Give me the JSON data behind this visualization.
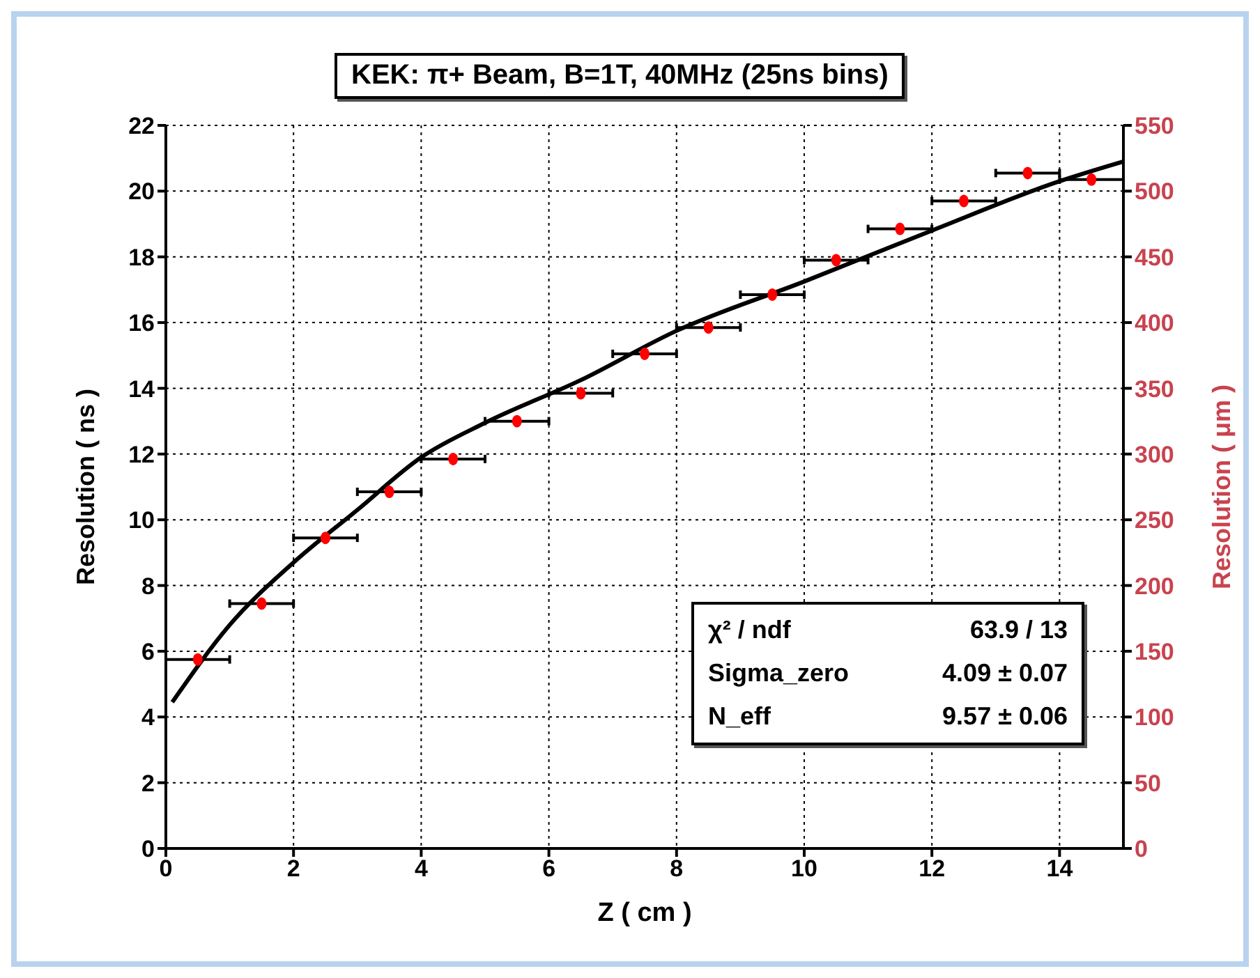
{
  "chart_data": {
    "type": "scatter",
    "title": "KEK: π+ Beam, B=1T, 40MHz (25ns bins)",
    "xlabel": "Z  ( cm )",
    "ylabel": "Resolution  ( ns )",
    "y2label": "Resolution  ( μm )",
    "xlim": [
      0,
      15
    ],
    "xticks": [
      0,
      2,
      4,
      6,
      8,
      10,
      12,
      14
    ],
    "ylim": [
      0,
      22
    ],
    "yticks": [
      0,
      2,
      4,
      6,
      8,
      10,
      12,
      14,
      16,
      18,
      20,
      22
    ],
    "y2lim": [
      0,
      550
    ],
    "y2ticks": [
      0,
      50,
      100,
      150,
      200,
      250,
      300,
      350,
      400,
      450,
      500,
      550
    ],
    "grid": true,
    "series": [
      {
        "color": "#ff0000",
        "marker": "circle",
        "x": [
          0.5,
          1.5,
          2.5,
          3.5,
          4.5,
          5.5,
          6.5,
          7.5,
          8.5,
          9.5,
          10.5,
          11.5,
          12.5,
          13.5,
          14.5
        ],
        "values": [
          5.75,
          7.45,
          9.45,
          10.85,
          11.85,
          13.0,
          13.85,
          15.05,
          15.85,
          16.85,
          17.9,
          18.85,
          19.7,
          20.55,
          20.35
        ],
        "xerrors": [
          0.5,
          0.5,
          0.5,
          0.5,
          0.5,
          0.5,
          0.5,
          0.5,
          0.5,
          0.5,
          0.5,
          0.5,
          0.5,
          0.5,
          0.5
        ]
      },
      {
        "type": "line",
        "color": "#000000",
        "marker": "none",
        "x": [
          0.1,
          1,
          2,
          3,
          4,
          5,
          6.5,
          8,
          10,
          12,
          14,
          15
        ],
        "values": [
          4.45,
          6.8,
          8.7,
          10.3,
          11.9,
          12.95,
          14.25,
          15.75,
          17.25,
          18.8,
          20.3,
          20.9
        ]
      }
    ],
    "annotations": [
      "χ² / ndf",
      "63.9 / 13",
      "Sigma_zero",
      "4.09 ± 0.07",
      "N_eff",
      "9.57 ± 0.06"
    ]
  }
}
